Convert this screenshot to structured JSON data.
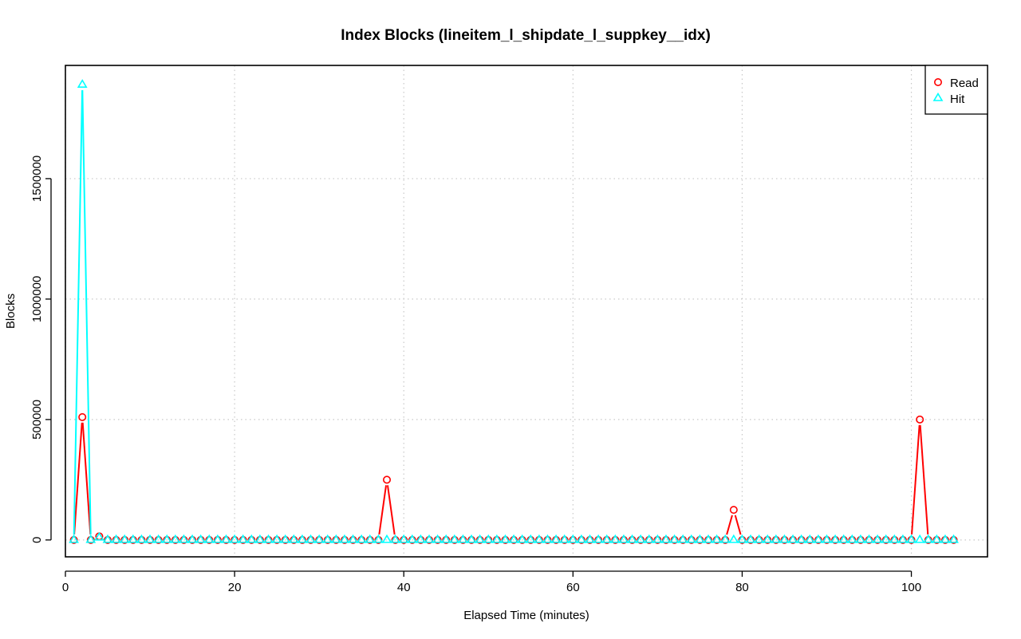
{
  "chart_data": {
    "type": "line",
    "title": "Index Blocks (lineitem_l_shipdate_l_suppkey__idx)",
    "xlabel": "Elapsed Time (minutes)",
    "ylabel": "Blocks",
    "xlim": [
      0,
      109
    ],
    "ylim": [
      -70000,
      1970000
    ],
    "xticks": [
      0,
      20,
      40,
      60,
      80,
      100
    ],
    "yticks": [
      0,
      500000,
      1000000,
      1500000
    ],
    "grid": true,
    "legend_position": "top-right",
    "x": [
      1,
      2,
      3,
      4,
      5,
      6,
      7,
      8,
      9,
      10,
      11,
      12,
      13,
      14,
      15,
      16,
      17,
      18,
      19,
      20,
      21,
      22,
      23,
      24,
      25,
      26,
      27,
      28,
      29,
      30,
      31,
      32,
      33,
      34,
      35,
      36,
      37,
      38,
      39,
      40,
      41,
      42,
      43,
      44,
      45,
      46,
      47,
      48,
      49,
      50,
      51,
      52,
      53,
      54,
      55,
      56,
      57,
      58,
      59,
      60,
      61,
      62,
      63,
      64,
      65,
      66,
      67,
      68,
      69,
      70,
      71,
      72,
      73,
      74,
      75,
      76,
      77,
      78,
      79,
      80,
      81,
      82,
      83,
      84,
      85,
      86,
      87,
      88,
      89,
      90,
      91,
      92,
      93,
      94,
      95,
      96,
      97,
      98,
      99,
      100,
      101,
      102,
      103,
      104,
      105
    ],
    "series": [
      {
        "name": "Read",
        "color": "#ff0000",
        "marker": "circle",
        "values": [
          0,
          510000,
          0,
          15000,
          0,
          0,
          0,
          0,
          0,
          0,
          0,
          0,
          0,
          0,
          0,
          0,
          0,
          0,
          0,
          0,
          0,
          0,
          0,
          0,
          0,
          0,
          0,
          0,
          0,
          0,
          0,
          0,
          0,
          0,
          0,
          0,
          0,
          250000,
          0,
          0,
          0,
          0,
          0,
          0,
          0,
          0,
          0,
          0,
          0,
          0,
          0,
          0,
          0,
          0,
          0,
          0,
          0,
          0,
          0,
          0,
          0,
          0,
          0,
          0,
          0,
          0,
          0,
          0,
          0,
          0,
          0,
          0,
          0,
          0,
          0,
          0,
          0,
          0,
          125000,
          0,
          0,
          0,
          0,
          0,
          0,
          0,
          0,
          0,
          0,
          0,
          0,
          0,
          0,
          0,
          0,
          0,
          0,
          0,
          0,
          0,
          500000,
          0,
          0,
          0,
          0
        ]
      },
      {
        "name": "Hit",
        "color": "#00ffff",
        "marker": "triangle",
        "values": [
          0,
          1890000,
          0,
          10000,
          0,
          0,
          0,
          0,
          0,
          0,
          0,
          0,
          0,
          0,
          0,
          0,
          0,
          0,
          0,
          0,
          0,
          0,
          0,
          0,
          0,
          0,
          0,
          0,
          0,
          0,
          0,
          0,
          0,
          0,
          0,
          0,
          0,
          0,
          0,
          0,
          0,
          0,
          0,
          0,
          0,
          0,
          0,
          0,
          0,
          0,
          0,
          0,
          0,
          0,
          0,
          0,
          0,
          0,
          0,
          0,
          0,
          0,
          0,
          0,
          0,
          0,
          0,
          0,
          0,
          0,
          0,
          0,
          0,
          0,
          0,
          0,
          0,
          0,
          0,
          0,
          0,
          0,
          0,
          0,
          0,
          0,
          0,
          0,
          0,
          0,
          0,
          0,
          0,
          0,
          0,
          0,
          0,
          0,
          0,
          0,
          0,
          0,
          0,
          0,
          0
        ]
      }
    ]
  }
}
